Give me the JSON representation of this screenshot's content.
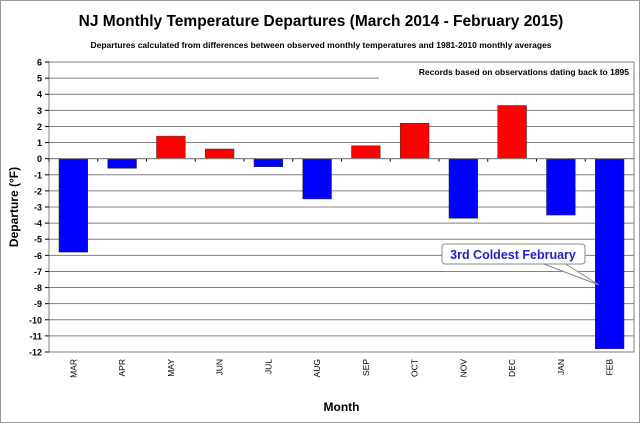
{
  "chart_data": {
    "type": "bar",
    "title": "NJ Monthly  Temperature Departures (March 2014 - February 2015)",
    "subtitle": "Departures calculated from differences between observed monthly temperatures and 1981-2010 monthly averages",
    "note": "Records based on observations dating back to 1895",
    "annotation": "3rd Coldest February",
    "xlabel": "Month",
    "ylabel": "Departure (°F)",
    "ylim": [
      -12,
      6
    ],
    "yticks": [
      6,
      5,
      4,
      3,
      2,
      1,
      0,
      -1,
      -2,
      -3,
      -4,
      -5,
      -6,
      -7,
      -8,
      -9,
      -10,
      -11,
      -12
    ],
    "grid": true,
    "categories": [
      "MAR",
      "APR",
      "MAY",
      "JUN",
      "JUL",
      "AUG",
      "SEP",
      "OCT",
      "NOV",
      "DEC",
      "JAN",
      "FEB"
    ],
    "values": [
      -5.8,
      -0.6,
      1.4,
      0.6,
      -0.5,
      -2.5,
      0.8,
      2.2,
      -3.7,
      3.3,
      -3.5,
      -11.8
    ],
    "colors": {
      "positive": "#ff0000",
      "negative": "#0000ff",
      "annotation": "#1f1fd0"
    }
  }
}
